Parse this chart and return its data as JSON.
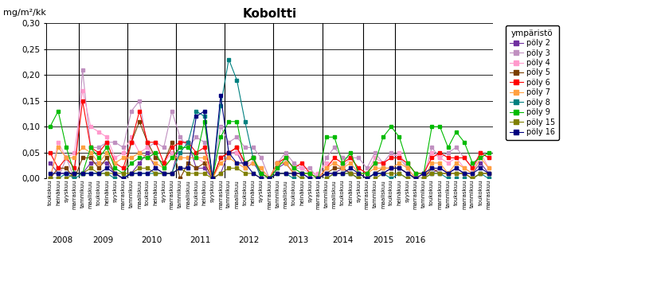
{
  "title": "Koboltti",
  "ylabel": "mg/m²/kk",
  "legend_title": "ympäristö",
  "ylim": [
    0,
    0.3
  ],
  "yticks": [
    0.0,
    0.05,
    0.1,
    0.15,
    0.2,
    0.25,
    0.3
  ],
  "series_order": [
    "pöly 2",
    "pöly 3",
    "pöly 4",
    "pöly 5",
    "pöly 6",
    "pöly 7",
    "pöly 8",
    "pöly 9",
    "pöly 15",
    "pöly 16"
  ],
  "series": {
    "pöly 2": {
      "color": "#7030A0",
      "marker": "s",
      "ms": 3.5,
      "lw": 0.8
    },
    "pöly 3": {
      "color": "#C090C0",
      "marker": "s",
      "ms": 3.5,
      "lw": 0.8
    },
    "pöly 4": {
      "color": "#FF99CC",
      "marker": "s",
      "ms": 3.5,
      "lw": 0.8
    },
    "pöly 5": {
      "color": "#7B3F00",
      "marker": "s",
      "ms": 3.5,
      "lw": 0.8
    },
    "pöly 6": {
      "color": "#FF0000",
      "marker": "s",
      "ms": 3.5,
      "lw": 0.8
    },
    "pöly 7": {
      "color": "#FFA040",
      "marker": "s",
      "ms": 3.5,
      "lw": 0.8
    },
    "pöly 8": {
      "color": "#008080",
      "marker": "s",
      "ms": 3.5,
      "lw": 0.8
    },
    "pöly 9": {
      "color": "#00BB00",
      "marker": "s",
      "ms": 3.5,
      "lw": 0.8
    },
    "pöly 15": {
      "color": "#808000",
      "marker": "s",
      "ms": 3.5,
      "lw": 0.8
    },
    "pöly 16": {
      "color": "#000080",
      "marker": "s",
      "ms": 3.5,
      "lw": 0.8
    }
  },
  "x_labels": [
    "toukokuu",
    "heinäkuu",
    "syyskuu",
    "marraskuu",
    "tammikuu",
    "maaliskuu",
    "toukokuu",
    "heinäkuu",
    "syyskuu",
    "marraskuu",
    "tammikuu",
    "maaliskuu",
    "toukokuu",
    "heinäkuu",
    "syyskuu",
    "marraskuu",
    "tammikuu",
    "maaliskuu",
    "toukokuu",
    "heinäkuu",
    "syyskuu",
    "marraskuu",
    "tammikuu",
    "maaliskuu",
    "toukokuu",
    "heinäkuu",
    "syyskuu",
    "marraskuu",
    "tammikuu",
    "maaliskuu",
    "toukokuu",
    "heinäkuu",
    "syyskuu",
    "marraskuu",
    "tammikuu",
    "maaliskuu",
    "toukokuu",
    "heinäkuu",
    "syyskuu",
    "marraskuu",
    "tammikuu",
    "maaliskuu",
    "toukokuu",
    "heinäkuu",
    "syyskuu",
    "marraskuu",
    "tammikuu",
    "toukokuu",
    "marraskuu",
    "tammikuu",
    "toukokuu",
    "marraskuu",
    "tammikuu",
    "toukokuu",
    "marraskuu"
  ],
  "year_label_positions": [
    [
      1.5,
      "2008"
    ],
    [
      6.5,
      "2009"
    ],
    [
      12.5,
      "2010"
    ],
    [
      18.5,
      "2011"
    ],
    [
      24.5,
      "2012"
    ],
    [
      30.5,
      "2013"
    ],
    [
      36.0,
      "2014"
    ],
    [
      41.0,
      "2015"
    ],
    [
      45.0,
      "2016"
    ]
  ],
  "year_dividers": [
    3.5,
    9.5,
    15.5,
    21.5,
    27.5,
    33.5,
    38.5,
    42.5
  ],
  "data": {
    "pöly 2": [
      0.03,
      0.01,
      0.01,
      0.01,
      0.01,
      0.03,
      0.03,
      0.03,
      0.01,
      0.0,
      0.01,
      0.03,
      0.05,
      0.02,
      0.01,
      0.01,
      0.07,
      0.07,
      0.02,
      0.02,
      0.0,
      0.01,
      0.05,
      0.05,
      0.02,
      0.03,
      0.01,
      0.0,
      0.02,
      0.03,
      0.01,
      0.01,
      0.0,
      0.0,
      0.01,
      0.01,
      0.02,
      0.01,
      0.0,
      0.0,
      0.01,
      0.01,
      0.02,
      0.02,
      0.01,
      0.0,
      0.01,
      0.01,
      0.02,
      0.01,
      0.02,
      0.01,
      0.01,
      0.03,
      0.01
    ],
    "pöly 3": [
      0.0,
      0.0,
      0.04,
      0.0,
      0.21,
      0.06,
      0.06,
      0.07,
      0.07,
      0.06,
      0.13,
      0.15,
      0.06,
      0.07,
      0.06,
      0.13,
      0.08,
      0.06,
      0.08,
      0.07,
      0.0,
      0.1,
      0.07,
      0.08,
      0.06,
      0.06,
      0.04,
      0.0,
      0.03,
      0.05,
      0.03,
      0.02,
      0.02,
      0.0,
      0.04,
      0.06,
      0.04,
      0.04,
      0.04,
      0.02,
      0.05,
      0.03,
      0.05,
      0.04,
      0.02,
      0.0,
      0.0,
      0.06,
      0.04,
      0.05,
      0.06,
      0.04,
      0.02,
      0.05,
      0.04
    ],
    "pöly 4": [
      0.0,
      0.07,
      0.04,
      0.05,
      0.17,
      0.1,
      0.09,
      0.08,
      0.04,
      0.05,
      0.08,
      0.05,
      0.06,
      0.04,
      0.03,
      0.05,
      0.04,
      0.04,
      0.04,
      0.03,
      0.0,
      0.04,
      0.05,
      0.05,
      0.03,
      0.03,
      0.02,
      0.0,
      0.03,
      0.04,
      0.02,
      0.02,
      0.01,
      0.01,
      0.03,
      0.03,
      0.02,
      0.04,
      0.02,
      0.01,
      0.04,
      0.03,
      0.04,
      0.05,
      0.02,
      0.0,
      0.01,
      0.05,
      0.04,
      0.03,
      0.04,
      0.02,
      0.01,
      0.05,
      0.02
    ],
    "pöly 5": [
      0.0,
      0.02,
      0.02,
      0.0,
      0.04,
      0.04,
      0.02,
      0.04,
      0.01,
      0.0,
      0.07,
      0.11,
      0.07,
      0.04,
      0.03,
      0.07,
      0.0,
      0.03,
      0.02,
      0.03,
      0.0,
      0.04,
      0.05,
      0.06,
      0.03,
      0.04,
      0.01,
      0.0,
      0.03,
      0.03,
      0.01,
      0.01,
      0.01,
      0.0,
      0.01,
      0.02,
      0.02,
      0.01,
      0.01,
      0.0,
      0.01,
      0.02,
      0.02,
      0.02,
      0.01,
      0.0,
      0.0,
      0.02,
      0.01,
      0.01,
      0.01,
      0.01,
      0.0,
      0.01,
      0.01
    ],
    "pöly 6": [
      0.05,
      0.02,
      0.04,
      0.02,
      0.15,
      0.06,
      0.05,
      0.07,
      0.03,
      0.02,
      0.07,
      0.13,
      0.07,
      0.07,
      0.03,
      0.06,
      0.07,
      0.07,
      0.05,
      0.06,
      0.0,
      0.04,
      0.05,
      0.06,
      0.03,
      0.04,
      0.01,
      0.0,
      0.03,
      0.04,
      0.02,
      0.03,
      0.01,
      0.0,
      0.02,
      0.04,
      0.03,
      0.04,
      0.02,
      0.01,
      0.03,
      0.03,
      0.04,
      0.04,
      0.03,
      0.01,
      0.01,
      0.04,
      0.05,
      0.04,
      0.04,
      0.04,
      0.02,
      0.05,
      0.04
    ],
    "pöly 7": [
      0.0,
      0.06,
      0.04,
      0.04,
      0.06,
      0.05,
      0.03,
      0.05,
      0.03,
      0.04,
      0.04,
      0.05,
      0.04,
      0.03,
      0.02,
      0.04,
      0.04,
      0.04,
      0.04,
      0.04,
      0.0,
      0.03,
      0.04,
      0.03,
      0.02,
      0.03,
      0.02,
      0.0,
      0.03,
      0.03,
      0.01,
      0.01,
      0.01,
      0.0,
      0.02,
      0.03,
      0.02,
      0.03,
      0.01,
      0.01,
      0.02,
      0.02,
      0.02,
      0.03,
      0.02,
      0.0,
      0.0,
      0.03,
      0.03,
      0.01,
      0.03,
      0.02,
      0.01,
      0.04,
      0.02
    ],
    "pöly 8": [
      0.0,
      0.0,
      0.01,
      0.0,
      0.01,
      0.01,
      0.01,
      0.01,
      0.0,
      0.0,
      0.01,
      0.01,
      0.01,
      0.01,
      0.01,
      0.01,
      0.05,
      0.07,
      0.13,
      0.12,
      0.0,
      0.14,
      0.23,
      0.19,
      0.11,
      0.04,
      0.0,
      0.0,
      0.01,
      0.01,
      0.0,
      0.0,
      0.0,
      0.0,
      0.0,
      0.01,
      0.01,
      0.01,
      0.0,
      0.0,
      0.01,
      0.01,
      0.0,
      0.01,
      0.0,
      0.0,
      0.0,
      0.01,
      0.01,
      0.0,
      0.0,
      0.0,
      0.0,
      0.01,
      0.0
    ],
    "pöly 9": [
      0.1,
      0.13,
      0.06,
      0.01,
      0.01,
      0.06,
      0.04,
      0.06,
      0.02,
      0.01,
      0.03,
      0.04,
      0.04,
      0.05,
      0.02,
      0.04,
      0.06,
      0.06,
      0.04,
      0.11,
      0.0,
      0.08,
      0.11,
      0.11,
      0.03,
      0.04,
      0.01,
      0.0,
      0.02,
      0.04,
      0.02,
      0.01,
      0.01,
      0.0,
      0.08,
      0.08,
      0.03,
      0.05,
      0.01,
      0.01,
      0.03,
      0.08,
      0.1,
      0.08,
      0.03,
      0.01,
      0.01,
      0.1,
      0.1,
      0.06,
      0.09,
      0.07,
      0.03,
      0.04,
      0.05
    ],
    "pöly 15": [
      0.0,
      0.0,
      0.0,
      0.01,
      0.01,
      0.02,
      0.01,
      0.01,
      0.01,
      0.01,
      0.01,
      0.02,
      0.02,
      0.01,
      0.01,
      0.01,
      0.02,
      0.01,
      0.01,
      0.01,
      0.0,
      0.01,
      0.02,
      0.02,
      0.01,
      0.01,
      0.0,
      0.0,
      0.01,
      0.01,
      0.01,
      0.0,
      0.0,
      0.0,
      0.0,
      0.01,
      0.01,
      0.01,
      0.0,
      0.0,
      0.0,
      0.01,
      0.01,
      0.01,
      0.0,
      0.0,
      0.0,
      0.01,
      0.01,
      0.01,
      0.01,
      0.01,
      0.0,
      0.01,
      0.01
    ],
    "pöly 16": [
      0.01,
      0.01,
      0.01,
      0.01,
      0.01,
      0.01,
      0.01,
      0.02,
      0.01,
      0.0,
      0.01,
      0.01,
      0.01,
      0.02,
      0.01,
      0.01,
      0.02,
      0.02,
      0.12,
      0.13,
      0.0,
      0.16,
      0.05,
      0.03,
      0.03,
      0.01,
      0.0,
      0.0,
      0.01,
      0.01,
      0.01,
      0.01,
      0.0,
      0.0,
      0.01,
      0.01,
      0.01,
      0.02,
      0.01,
      0.0,
      0.01,
      0.01,
      0.02,
      0.02,
      0.01,
      0.0,
      0.01,
      0.02,
      0.02,
      0.01,
      0.02,
      0.01,
      0.01,
      0.02,
      0.01
    ]
  }
}
